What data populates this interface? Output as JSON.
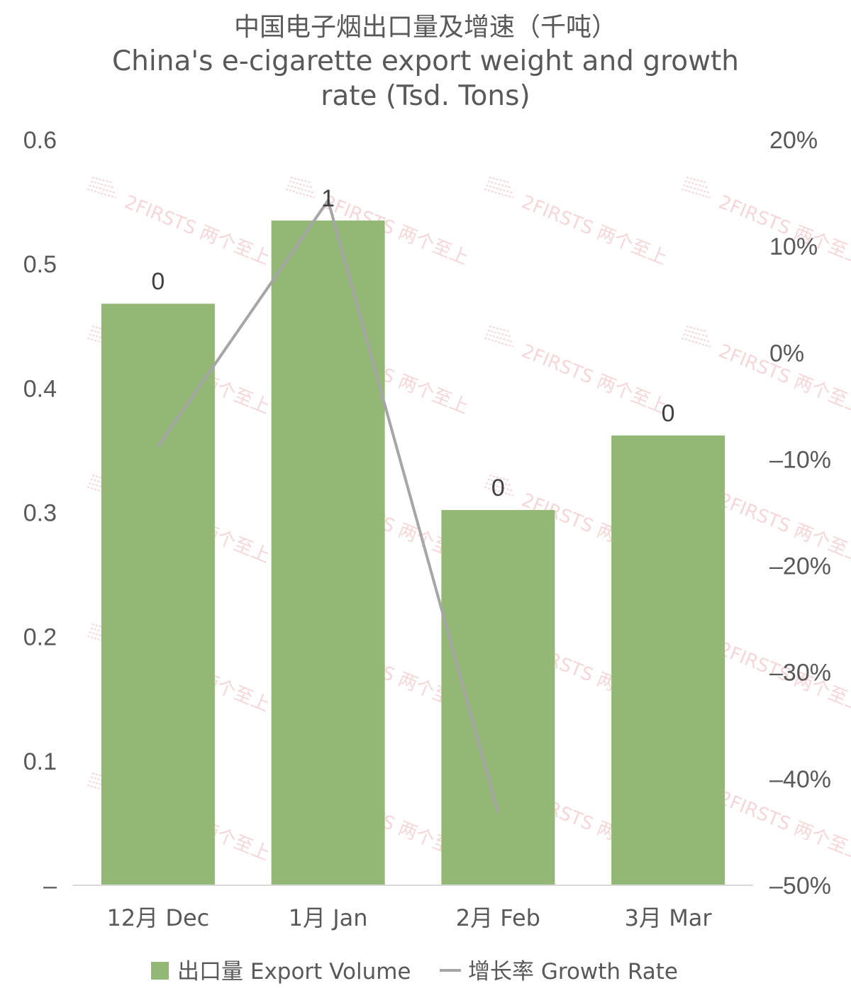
{
  "chart_data": {
    "type": "bar",
    "title": "中国电子烟出口量及增速（千吨）",
    "subtitle_lines": [
      "China's e-cigarette export weight and growth",
      "rate (Tsd. Tons)"
    ],
    "categories": [
      "12月 Dec",
      "1月 Jan",
      "2月 Feb",
      "3月 Mar"
    ],
    "series": [
      {
        "name": "出口量 Export Volume",
        "type": "bar",
        "axis": "left",
        "values": [
          0.468,
          0.535,
          0.302,
          0.362
        ],
        "data_labels": [
          "0",
          "1",
          "0",
          "0"
        ],
        "color": "#93b876"
      },
      {
        "name": "增长率 Growth Rate",
        "type": "line",
        "axis": "right",
        "values": [
          -0.088,
          0.143,
          -0.432,
          null
        ],
        "color": "#a6a6a6"
      }
    ],
    "y_left": {
      "ylim": [
        0,
        0.6
      ],
      "tick_labels": [
        "–",
        "0.1",
        "0.2",
        "0.3",
        "0.4",
        "0.5",
        "0.6"
      ]
    },
    "y_right": {
      "ylim": [
        -0.5,
        0.2
      ],
      "tick_labels": [
        "–50%",
        "–40%",
        "–30%",
        "–20%",
        "–10%",
        "0%",
        "10%",
        "20%"
      ]
    },
    "grid": false,
    "legend_position": "bottom",
    "watermark": "2FIRSTS 两个至上"
  }
}
